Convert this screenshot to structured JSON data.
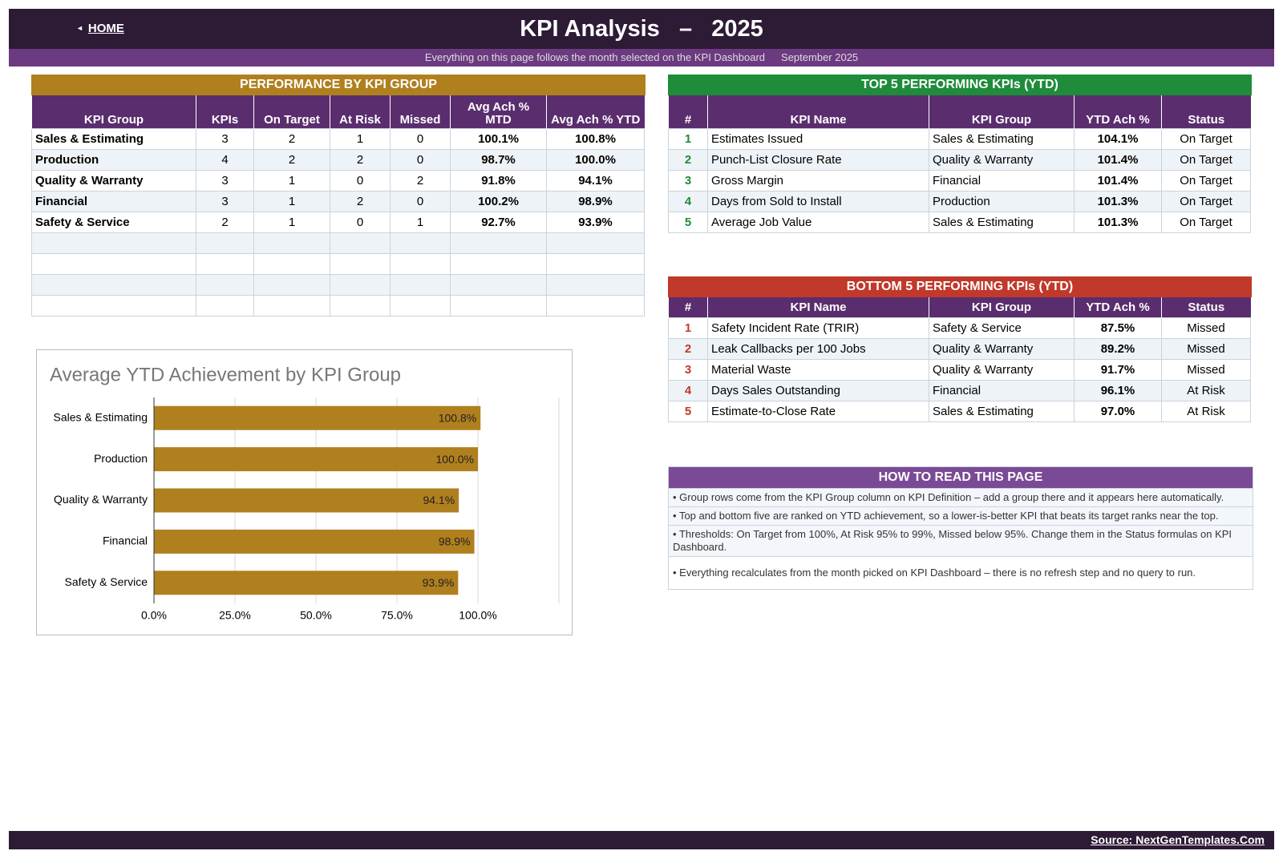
{
  "header": {
    "home": "HOME",
    "title": "KPI Analysis   –   2025",
    "subtitle": "Everything on this page follows the month selected on the KPI Dashboard",
    "month": "September 2025"
  },
  "group_table": {
    "title": "PERFORMANCE BY KPI GROUP",
    "columns": [
      "KPI Group",
      "KPIs",
      "On Target",
      "At Risk",
      "Missed",
      "Avg Ach % MTD",
      "Avg Ach % YTD"
    ],
    "rows": [
      [
        "Sales & Estimating",
        "3",
        "2",
        "1",
        "0",
        "100.1%",
        "100.8%"
      ],
      [
        "Production",
        "4",
        "2",
        "2",
        "0",
        "98.7%",
        "100.0%"
      ],
      [
        "Quality & Warranty",
        "3",
        "1",
        "0",
        "2",
        "91.8%",
        "94.1%"
      ],
      [
        "Financial",
        "3",
        "1",
        "2",
        "0",
        "100.2%",
        "98.9%"
      ],
      [
        "Safety & Service",
        "2",
        "1",
        "0",
        "1",
        "92.7%",
        "93.9%"
      ]
    ]
  },
  "top5": {
    "title": "TOP 5 PERFORMING KPIs  (YTD)",
    "columns": [
      "#",
      "KPI Name",
      "KPI Group",
      "YTD Ach %",
      "Status"
    ],
    "rows": [
      [
        "1",
        "Estimates Issued",
        "Sales & Estimating",
        "104.1%",
        "On Target"
      ],
      [
        "2",
        "Punch-List Closure Rate",
        "Quality & Warranty",
        "101.4%",
        "On Target"
      ],
      [
        "3",
        "Gross Margin",
        "Financial",
        "101.4%",
        "On Target"
      ],
      [
        "4",
        "Days from Sold to Install",
        "Production",
        "101.3%",
        "On Target"
      ],
      [
        "5",
        "Average Job Value",
        "Sales & Estimating",
        "101.3%",
        "On Target"
      ]
    ]
  },
  "bottom5": {
    "title": "BOTTOM 5 PERFORMING KPIs  (YTD)",
    "columns": [
      "#",
      "KPI Name",
      "KPI Group",
      "YTD Ach %",
      "Status"
    ],
    "rows": [
      [
        "1",
        "Safety Incident Rate (TRIR)",
        "Safety & Service",
        "87.5%",
        "Missed"
      ],
      [
        "2",
        "Leak Callbacks per 100 Jobs",
        "Quality & Warranty",
        "89.2%",
        "Missed"
      ],
      [
        "3",
        "Material Waste",
        "Quality & Warranty",
        "91.7%",
        "Missed"
      ],
      [
        "4",
        "Days Sales Outstanding",
        "Financial",
        "96.1%",
        "At Risk"
      ],
      [
        "5",
        "Estimate-to-Close Rate",
        "Sales & Estimating",
        "97.0%",
        "At Risk"
      ]
    ]
  },
  "how_to_read": {
    "title": "HOW TO READ THIS PAGE",
    "items": [
      "Group rows come from the KPI Group column on KPI Definition – add a group there and it appears here automatically.",
      "Top and bottom five are ranked on YTD achievement, so a lower-is-better KPI that beats its target ranks near the top.",
      "Thresholds: On Target from 100%, At Risk 95% to 99%, Missed below 95%. Change them in the Status formulas on KPI Dashboard.",
      "Everything recalculates from the month picked on KPI Dashboard – there is no refresh step and no query to run."
    ]
  },
  "chart_data": {
    "type": "bar",
    "orientation": "horizontal",
    "title": "Average YTD Achievement by KPI Group",
    "categories": [
      "Sales & Estimating",
      "Production",
      "Quality & Warranty",
      "Financial",
      "Safety & Service"
    ],
    "values": [
      100.8,
      100.0,
      94.1,
      98.9,
      93.9
    ],
    "value_labels": [
      "100.8%",
      "100.0%",
      "94.1%",
      "98.9%",
      "93.9%"
    ],
    "color": "#b07f1e",
    "xlim": [
      0,
      125
    ],
    "xticks": [
      {
        "value": 0,
        "label": "0.0%"
      },
      {
        "value": 25,
        "label": "25.0%"
      },
      {
        "value": 50,
        "label": "50.0%"
      },
      {
        "value": 75,
        "label": "75.0%"
      },
      {
        "value": 100,
        "label": "100.0%"
      }
    ],
    "grid": true
  },
  "footer": {
    "source": "Source: NextGenTemplates.Com"
  }
}
